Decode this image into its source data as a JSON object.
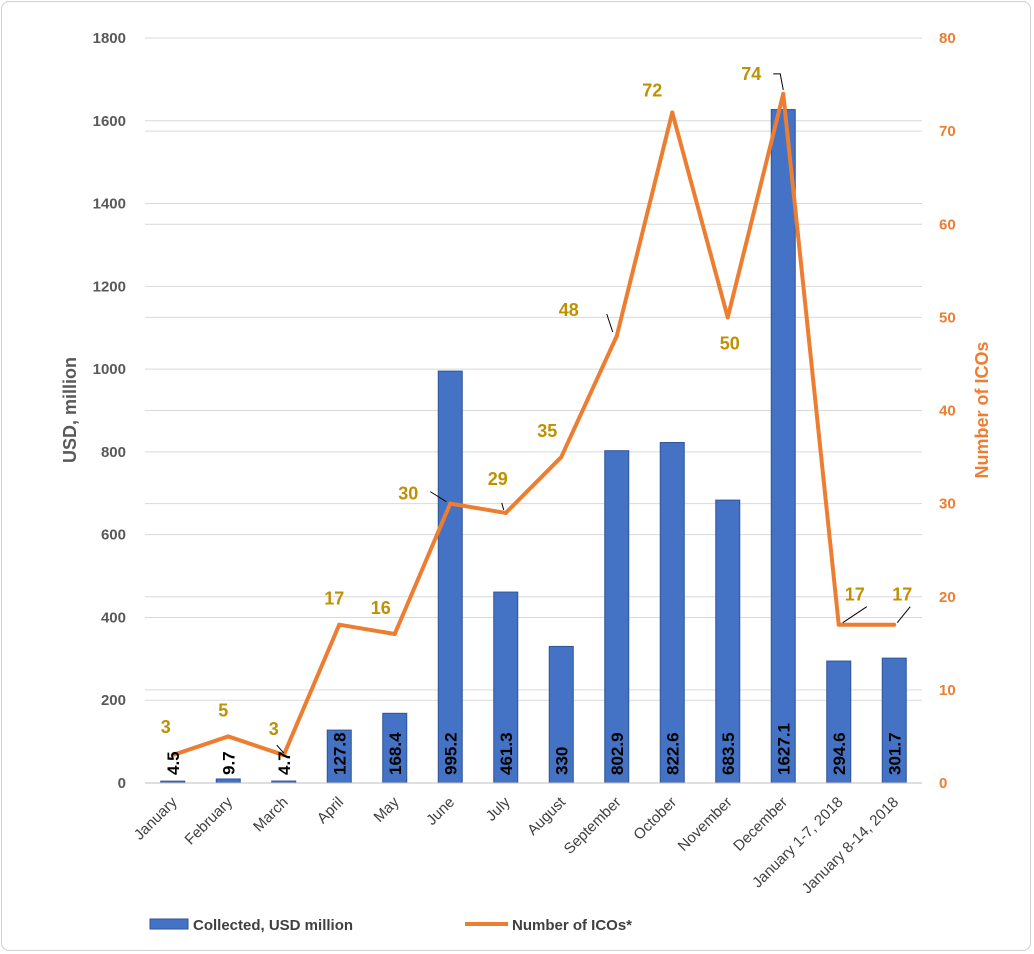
{
  "chart_data": {
    "type": "bar",
    "categories": [
      "January",
      "February",
      "March",
      "April",
      "May",
      "June",
      "July",
      "August",
      "September",
      "October",
      "November",
      "December",
      "January 1-7, 2018",
      "January 8-14, 2018"
    ],
    "series": [
      {
        "name": "Collected, USD million",
        "type": "bar",
        "axis": "left",
        "values": [
          4.5,
          9.7,
          4.7,
          127.8,
          168.4,
          995.2,
          461.3,
          330,
          802.9,
          822.6,
          683.5,
          1627.1,
          294.6,
          301.7
        ],
        "labels": [
          "4.5",
          "9.7",
          "4.7",
          "127.8",
          "168.4",
          "995.2",
          "461.3",
          "330",
          "802.9",
          "822.6",
          "683.5",
          "1627.1",
          "294.6",
          "301.7"
        ]
      },
      {
        "name": "Number of ICOs*",
        "type": "line",
        "axis": "right",
        "values": [
          3,
          5,
          3,
          17,
          16,
          30,
          29,
          35,
          48,
          72,
          50,
          74,
          17,
          17
        ],
        "labels": [
          "3",
          "5",
          "3",
          "17",
          "16",
          "30",
          "29",
          "35",
          "48",
          "72",
          "50",
          "74",
          "17",
          "17"
        ]
      }
    ],
    "ylabel": "USD, million",
    "y2label": "Number of ICOs",
    "ylim": [
      0,
      1800
    ],
    "y2lim": [
      0,
      80
    ],
    "yticks": [
      "0",
      "200",
      "400",
      "600",
      "800",
      "1000",
      "1200",
      "1400",
      "1600",
      "1800"
    ],
    "y2ticks": [
      "0",
      "10",
      "20",
      "30",
      "40",
      "50",
      "60",
      "70",
      "80"
    ],
    "grid": true,
    "legend_position": "bottom",
    "colors": {
      "bar": "#4472c4",
      "bar_edge": "#2f5597",
      "line": "#ed7d31",
      "line_label": "#bf9000",
      "left_axis": "#595959",
      "right_axis": "#ed7d31",
      "grid": "#d9d9d9"
    }
  }
}
